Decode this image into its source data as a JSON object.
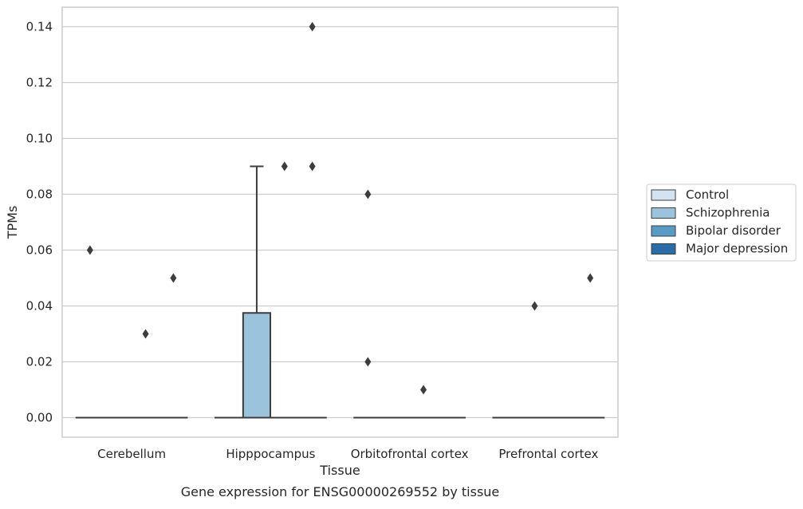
{
  "chart_data": {
    "type": "box",
    "caption": "Gene expression for ENSG00000269552 by tissue",
    "xlabel": "Tissue",
    "ylabel": "TPMs",
    "categories": [
      "Cerebellum",
      "Hipppocampus",
      "Orbitofrontal cortex",
      "Prefrontal cortex"
    ],
    "ylim": [
      -0.007,
      0.147
    ],
    "yticks": [
      0.0,
      0.02,
      0.04,
      0.06,
      0.08,
      0.1,
      0.12,
      0.14
    ],
    "ytick_labels": [
      "0.00",
      "0.02",
      "0.04",
      "0.06",
      "0.08",
      "0.10",
      "0.12",
      "0.14"
    ],
    "grid": "horizontal",
    "legend_position": "right",
    "series": [
      {
        "name": "Control",
        "color": "#d3e3f1",
        "boxes": [
          {
            "q1": 0,
            "median": 0,
            "q3": 0,
            "whisker_low": 0,
            "whisker_high": 0,
            "outliers": [
              0.06
            ]
          },
          {
            "q1": 0,
            "median": 0,
            "q3": 0,
            "whisker_low": 0,
            "whisker_high": 0,
            "outliers": []
          },
          {
            "q1": 0,
            "median": 0,
            "q3": 0,
            "whisker_low": 0,
            "whisker_high": 0,
            "outliers": [
              0.08,
              0.02
            ]
          },
          {
            "q1": 0,
            "median": 0,
            "q3": 0,
            "whisker_low": 0,
            "whisker_high": 0,
            "outliers": []
          }
        ]
      },
      {
        "name": "Schizophrenia",
        "color": "#9bc3dc",
        "boxes": [
          {
            "q1": 0,
            "median": 0,
            "q3": 0,
            "whisker_low": 0,
            "whisker_high": 0,
            "outliers": []
          },
          {
            "q1": 0,
            "median": 0,
            "q3": 0.0375,
            "whisker_low": 0,
            "whisker_high": 0.09,
            "outliers": []
          },
          {
            "q1": 0,
            "median": 0,
            "q3": 0,
            "whisker_low": 0,
            "whisker_high": 0,
            "outliers": []
          },
          {
            "q1": 0,
            "median": 0,
            "q3": 0,
            "whisker_low": 0,
            "whisker_high": 0,
            "outliers": [
              0.04
            ]
          }
        ]
      },
      {
        "name": "Bipolar disorder",
        "color": "#5a9bc6",
        "boxes": [
          {
            "q1": 0,
            "median": 0,
            "q3": 0,
            "whisker_low": 0,
            "whisker_high": 0,
            "outliers": [
              0.03
            ]
          },
          {
            "q1": 0,
            "median": 0,
            "q3": 0,
            "whisker_low": 0,
            "whisker_high": 0,
            "outliers": [
              0.09
            ]
          },
          {
            "q1": 0,
            "median": 0,
            "q3": 0,
            "whisker_low": 0,
            "whisker_high": 0,
            "outliers": [
              0.01
            ]
          },
          {
            "q1": 0,
            "median": 0,
            "q3": 0,
            "whisker_low": 0,
            "whisker_high": 0,
            "outliers": []
          }
        ]
      },
      {
        "name": "Major depression",
        "color": "#2b6ba6",
        "boxes": [
          {
            "q1": 0,
            "median": 0,
            "q3": 0,
            "whisker_low": 0,
            "whisker_high": 0,
            "outliers": [
              0.05
            ]
          },
          {
            "q1": 0,
            "median": 0,
            "q3": 0,
            "whisker_low": 0,
            "whisker_high": 0,
            "outliers": [
              0.14,
              0.09
            ]
          },
          {
            "q1": 0,
            "median": 0,
            "q3": 0,
            "whisker_low": 0,
            "whisker_high": 0,
            "outliers": []
          },
          {
            "q1": 0,
            "median": 0,
            "q3": 0,
            "whisker_low": 0,
            "whisker_high": 0,
            "outliers": [
              0.05
            ]
          }
        ]
      }
    ]
  }
}
